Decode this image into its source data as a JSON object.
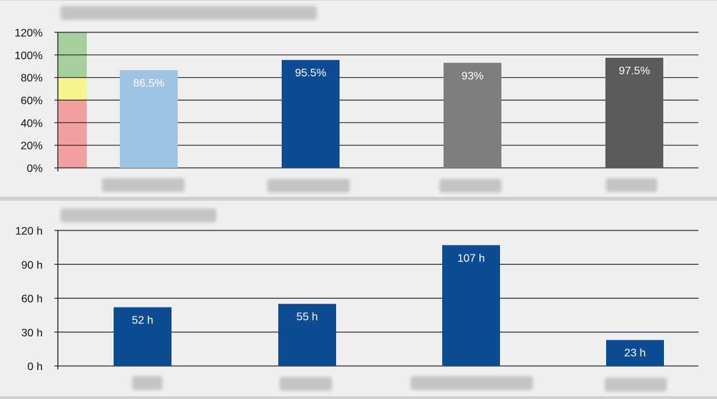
{
  "chart_data": [
    {
      "type": "bar",
      "title": "",
      "xlabel": "",
      "ylabel": "",
      "categories": [
        "",
        "",
        "",
        ""
      ],
      "values": [
        86.5,
        95.5,
        93,
        97.5
      ],
      "value_labels": [
        "86.5%",
        "95.5%",
        "93%",
        "97.5%"
      ],
      "bar_colors": [
        "#9fc3e2",
        "#0d4b93",
        "#7e7e7e",
        "#5b5b5b"
      ],
      "ylim": [
        0,
        120
      ],
      "yticks": [
        0,
        20,
        40,
        60,
        80,
        100,
        120
      ],
      "ytick_labels": [
        "0%",
        "20%",
        "40%",
        "60%",
        "80%",
        "100%",
        "120%"
      ],
      "grid": true,
      "threshold_bands": [
        {
          "from": 0,
          "to": 60,
          "color": "#f4a0a0"
        },
        {
          "from": 60,
          "to": 80,
          "color": "#f7f38f"
        },
        {
          "from": 80,
          "to": 120,
          "color": "#a5cf9d"
        }
      ]
    },
    {
      "type": "bar",
      "title": "",
      "xlabel": "",
      "ylabel": "",
      "categories": [
        "",
        "",
        "",
        ""
      ],
      "values": [
        52,
        55,
        107,
        23
      ],
      "value_labels": [
        "52 h",
        "55 h",
        "107 h",
        "23 h"
      ],
      "bar_colors": [
        "#0d4b93",
        "#0d4b93",
        "#0d4b93",
        "#0d4b93"
      ],
      "ylim": [
        0,
        120
      ],
      "yticks": [
        0,
        30,
        60,
        90,
        120
      ],
      "ytick_labels": [
        "0 h",
        "30 h",
        "60 h",
        "90 h",
        "120 h"
      ],
      "grid": true
    }
  ]
}
